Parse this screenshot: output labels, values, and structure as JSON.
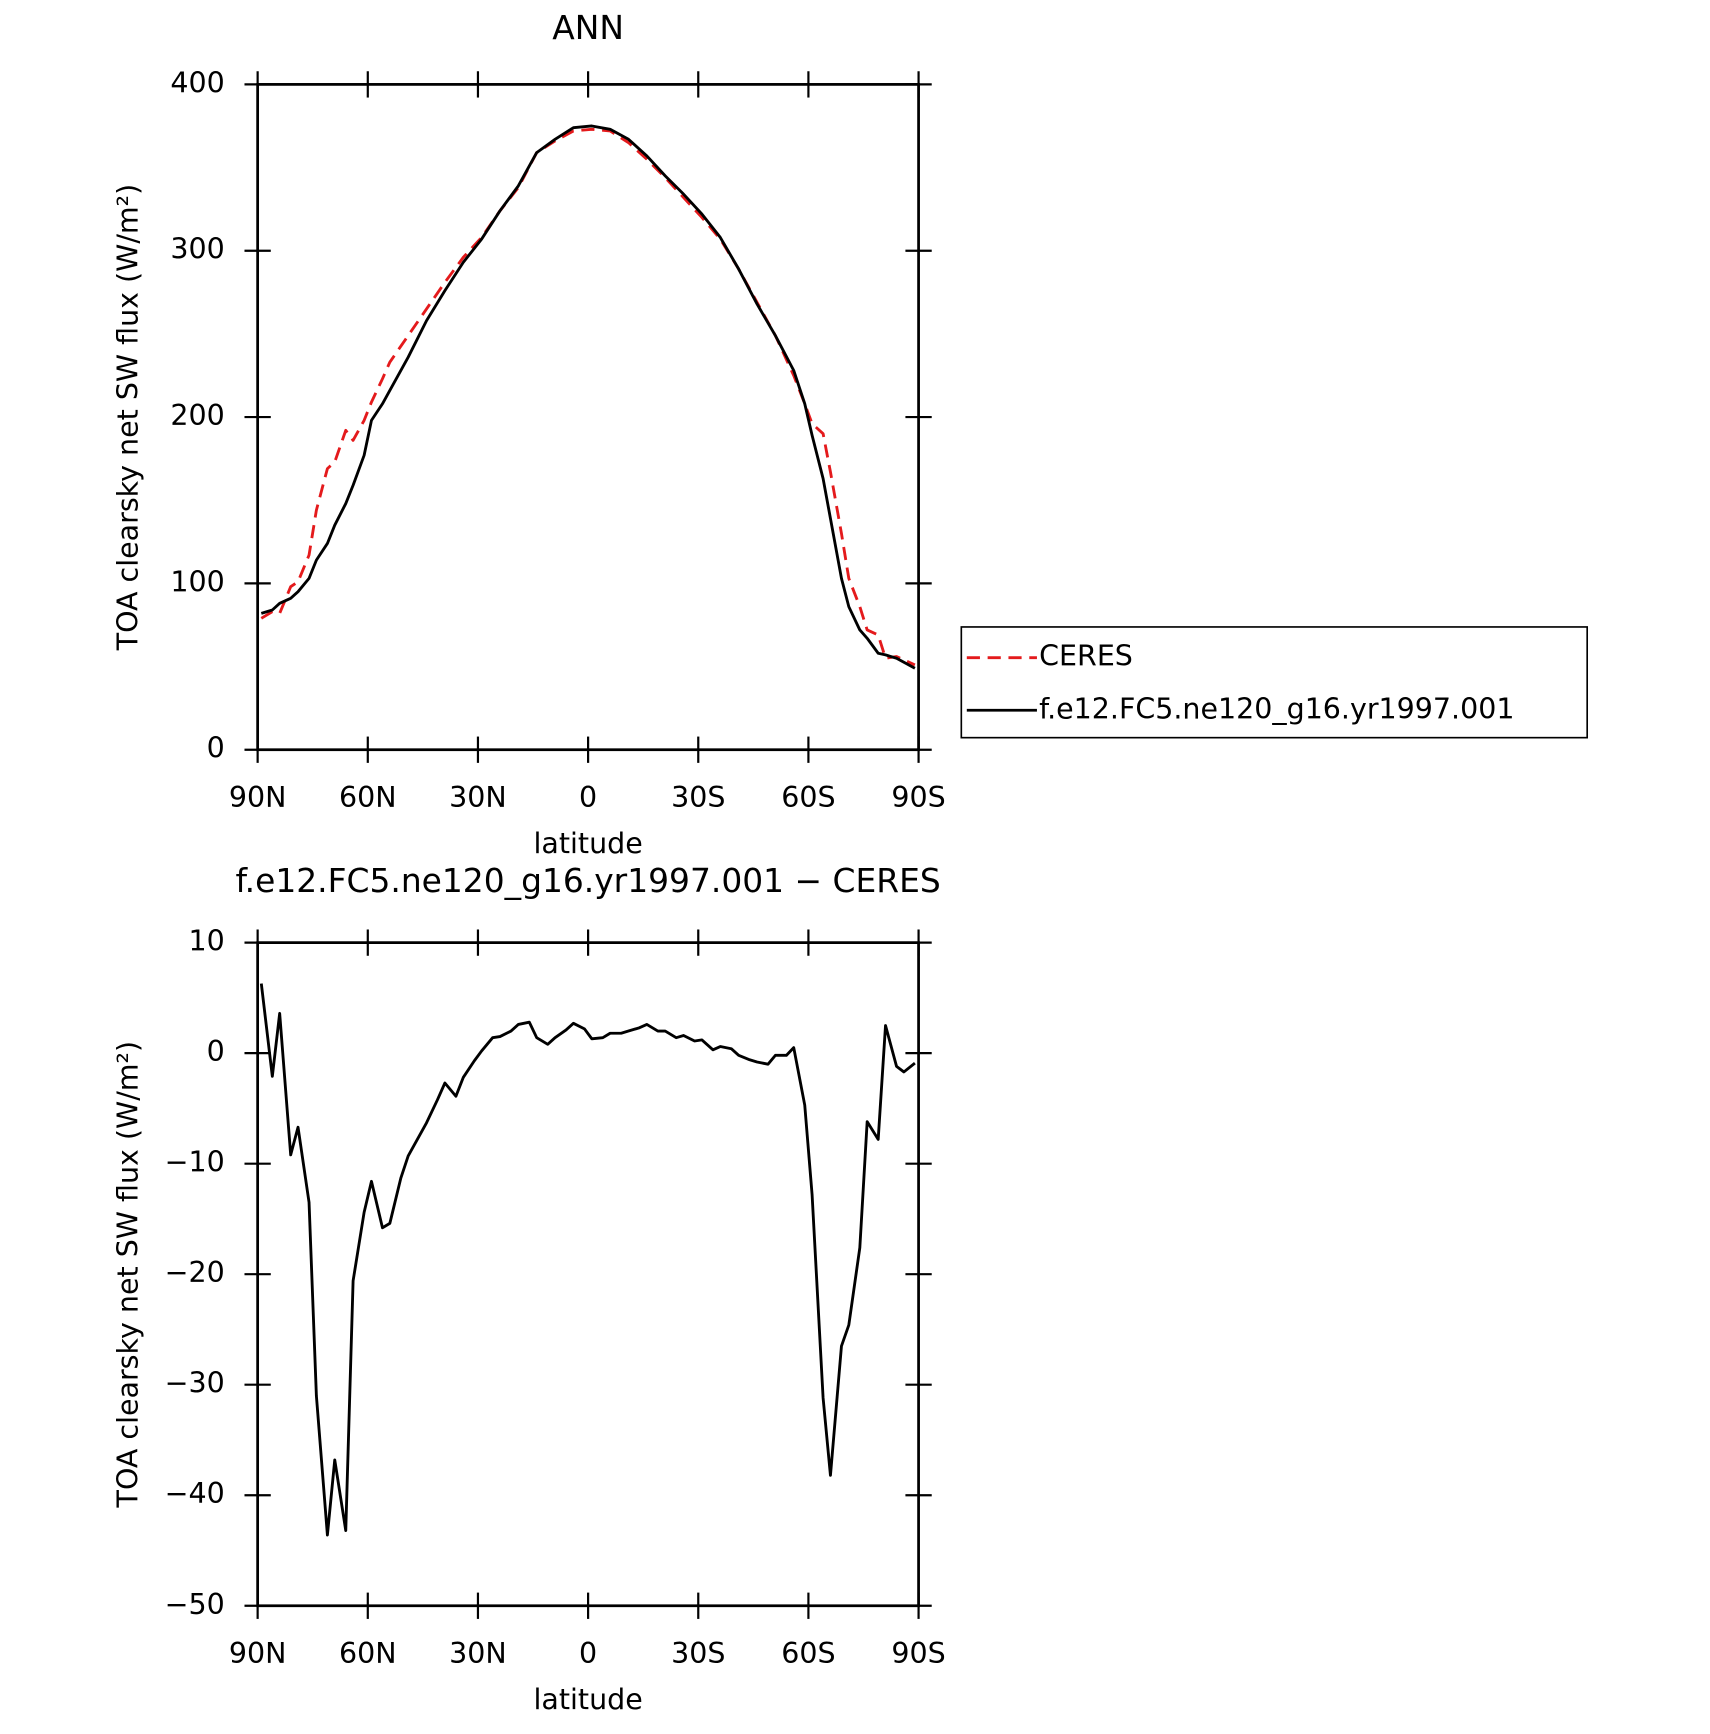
{
  "chart_data": [
    {
      "type": "line",
      "title": "ANN",
      "xlabel": "latitude",
      "ylabel": "TOA clearsky net SW flux (W/m²)",
      "x": [
        89,
        86,
        84,
        81,
        79,
        76,
        74,
        71,
        69,
        66,
        64,
        61,
        59,
        56,
        54,
        49,
        44,
        39,
        34,
        29,
        24,
        19,
        14,
        9,
        4,
        -1,
        -6,
        -11,
        -16,
        -21,
        -26,
        -31,
        -36,
        -41,
        -46,
        -51,
        -56,
        -59,
        -61,
        -64,
        -66,
        -69,
        -71,
        -74,
        -76,
        -79,
        -81,
        -84,
        -89
      ],
      "series": [
        {
          "name": "CERES",
          "color": "#e41a1c",
          "dashed": true,
          "values": [
            79,
            83,
            82,
            98,
            101,
            117,
            144,
            169,
            173,
            192,
            186,
            198,
            209,
            223,
            233,
            249,
            265,
            281,
            296,
            308,
            324,
            338,
            359,
            366,
            372,
            373,
            372,
            365,
            355,
            344,
            332,
            320,
            307,
            289,
            269,
            249,
            225,
            208,
            196,
            190,
            167,
            130,
            103,
            86,
            72,
            69,
            55,
            56,
            51
          ]
        },
        {
          "name": "f.e12.FC5.ne120_g16.yr1997.001",
          "color": "#000000",
          "dashed": false,
          "values": [
            82,
            84,
            88,
            91,
            95,
            103,
            114,
            124,
            135,
            148,
            159,
            177,
            198,
            208,
            216,
            236,
            258,
            276,
            293,
            307,
            324,
            339,
            359,
            367,
            374,
            375,
            373,
            367,
            357,
            345,
            334,
            322,
            308,
            289,
            268,
            249,
            228,
            208,
            189,
            163,
            139,
            103,
            86,
            72,
            67,
            58,
            57,
            55,
            49
          ]
        }
      ],
      "xlim": [
        90,
        -90
      ],
      "xticks": [
        {
          "value": 90,
          "label": "90N"
        },
        {
          "value": 60,
          "label": "60N"
        },
        {
          "value": 30,
          "label": "30N"
        },
        0,
        {
          "value": -30,
          "label": "30S"
        },
        {
          "value": -60,
          "label": "60S"
        },
        {
          "value": -90,
          "label": "90S"
        }
      ],
      "ylim": [
        0,
        400
      ],
      "yticks": [
        0,
        100,
        200,
        300,
        400
      ],
      "legend": "right"
    },
    {
      "type": "line",
      "title": "f.e12.FC5.ne120_g16.yr1997.001 − CERES",
      "xlabel": "latitude",
      "ylabel": "TOA clearsky net SW flux (W/m²)",
      "x": [
        89,
        86,
        84,
        81,
        79,
        76,
        74,
        71,
        69,
        66,
        64,
        61,
        59,
        56,
        54,
        51,
        49,
        46,
        44,
        41,
        39,
        36,
        34,
        31,
        29,
        26,
        24,
        21,
        19,
        16,
        14,
        11,
        9,
        6,
        4,
        1,
        -1,
        -4,
        -6,
        -9,
        -11,
        -14,
        -16,
        -19,
        -21,
        -24,
        -26,
        -29,
        -31,
        -34,
        -36,
        -39,
        -41,
        -44,
        -46,
        -49,
        -51,
        -54,
        -56,
        -59,
        -61,
        -64,
        -66,
        -69,
        -71,
        -74,
        -76,
        -79,
        -81,
        -84,
        -86,
        -89
      ],
      "values": [
        6.3,
        -2.1,
        3.6,
        -9.2,
        -6.7,
        -13.5,
        -31,
        -43.6,
        -36.8,
        -43.2,
        -20.6,
        -14.4,
        -11.6,
        -15.8,
        -15.4,
        -11.3,
        -9.3,
        -7.5,
        -6.3,
        -4.2,
        -2.7,
        -3.9,
        -2.2,
        -0.7,
        0.2,
        1.4,
        1.5,
        2.0,
        2.6,
        2.8,
        1.4,
        0.8,
        1.4,
        2.1,
        2.7,
        2.2,
        1.3,
        1.4,
        1.8,
        1.8,
        2.0,
        2.3,
        2.6,
        2.0,
        2.0,
        1.4,
        1.6,
        1.1,
        1.2,
        0.3,
        0.6,
        0.4,
        -0.2,
        -0.6,
        -0.8,
        -1.0,
        -0.2,
        -0.2,
        0.5,
        -4.7,
        -12.8,
        -31.2,
        -38.2,
        -26.5,
        -24.6,
        -17.6,
        -6.2,
        -7.8,
        2.5,
        -1.2,
        -1.7,
        -0.9
      ],
      "color": "#000000",
      "xlim": [
        90,
        -90
      ],
      "xticks": [
        {
          "value": 90,
          "label": "90N"
        },
        {
          "value": 60,
          "label": "60N"
        },
        {
          "value": 30,
          "label": "30N"
        },
        0,
        {
          "value": -30,
          "label": "30S"
        },
        {
          "value": -60,
          "label": "60S"
        },
        {
          "value": -90,
          "label": "90S"
        }
      ],
      "ylim": [
        -50,
        10
      ],
      "yticks": [
        {
          "value": -50,
          "label": "−50"
        },
        {
          "value": -40,
          "label": "−40"
        },
        {
          "value": -30,
          "label": "−30"
        },
        {
          "value": -20,
          "label": "−20"
        },
        {
          "value": -10,
          "label": "−10"
        },
        0,
        10
      ]
    }
  ]
}
